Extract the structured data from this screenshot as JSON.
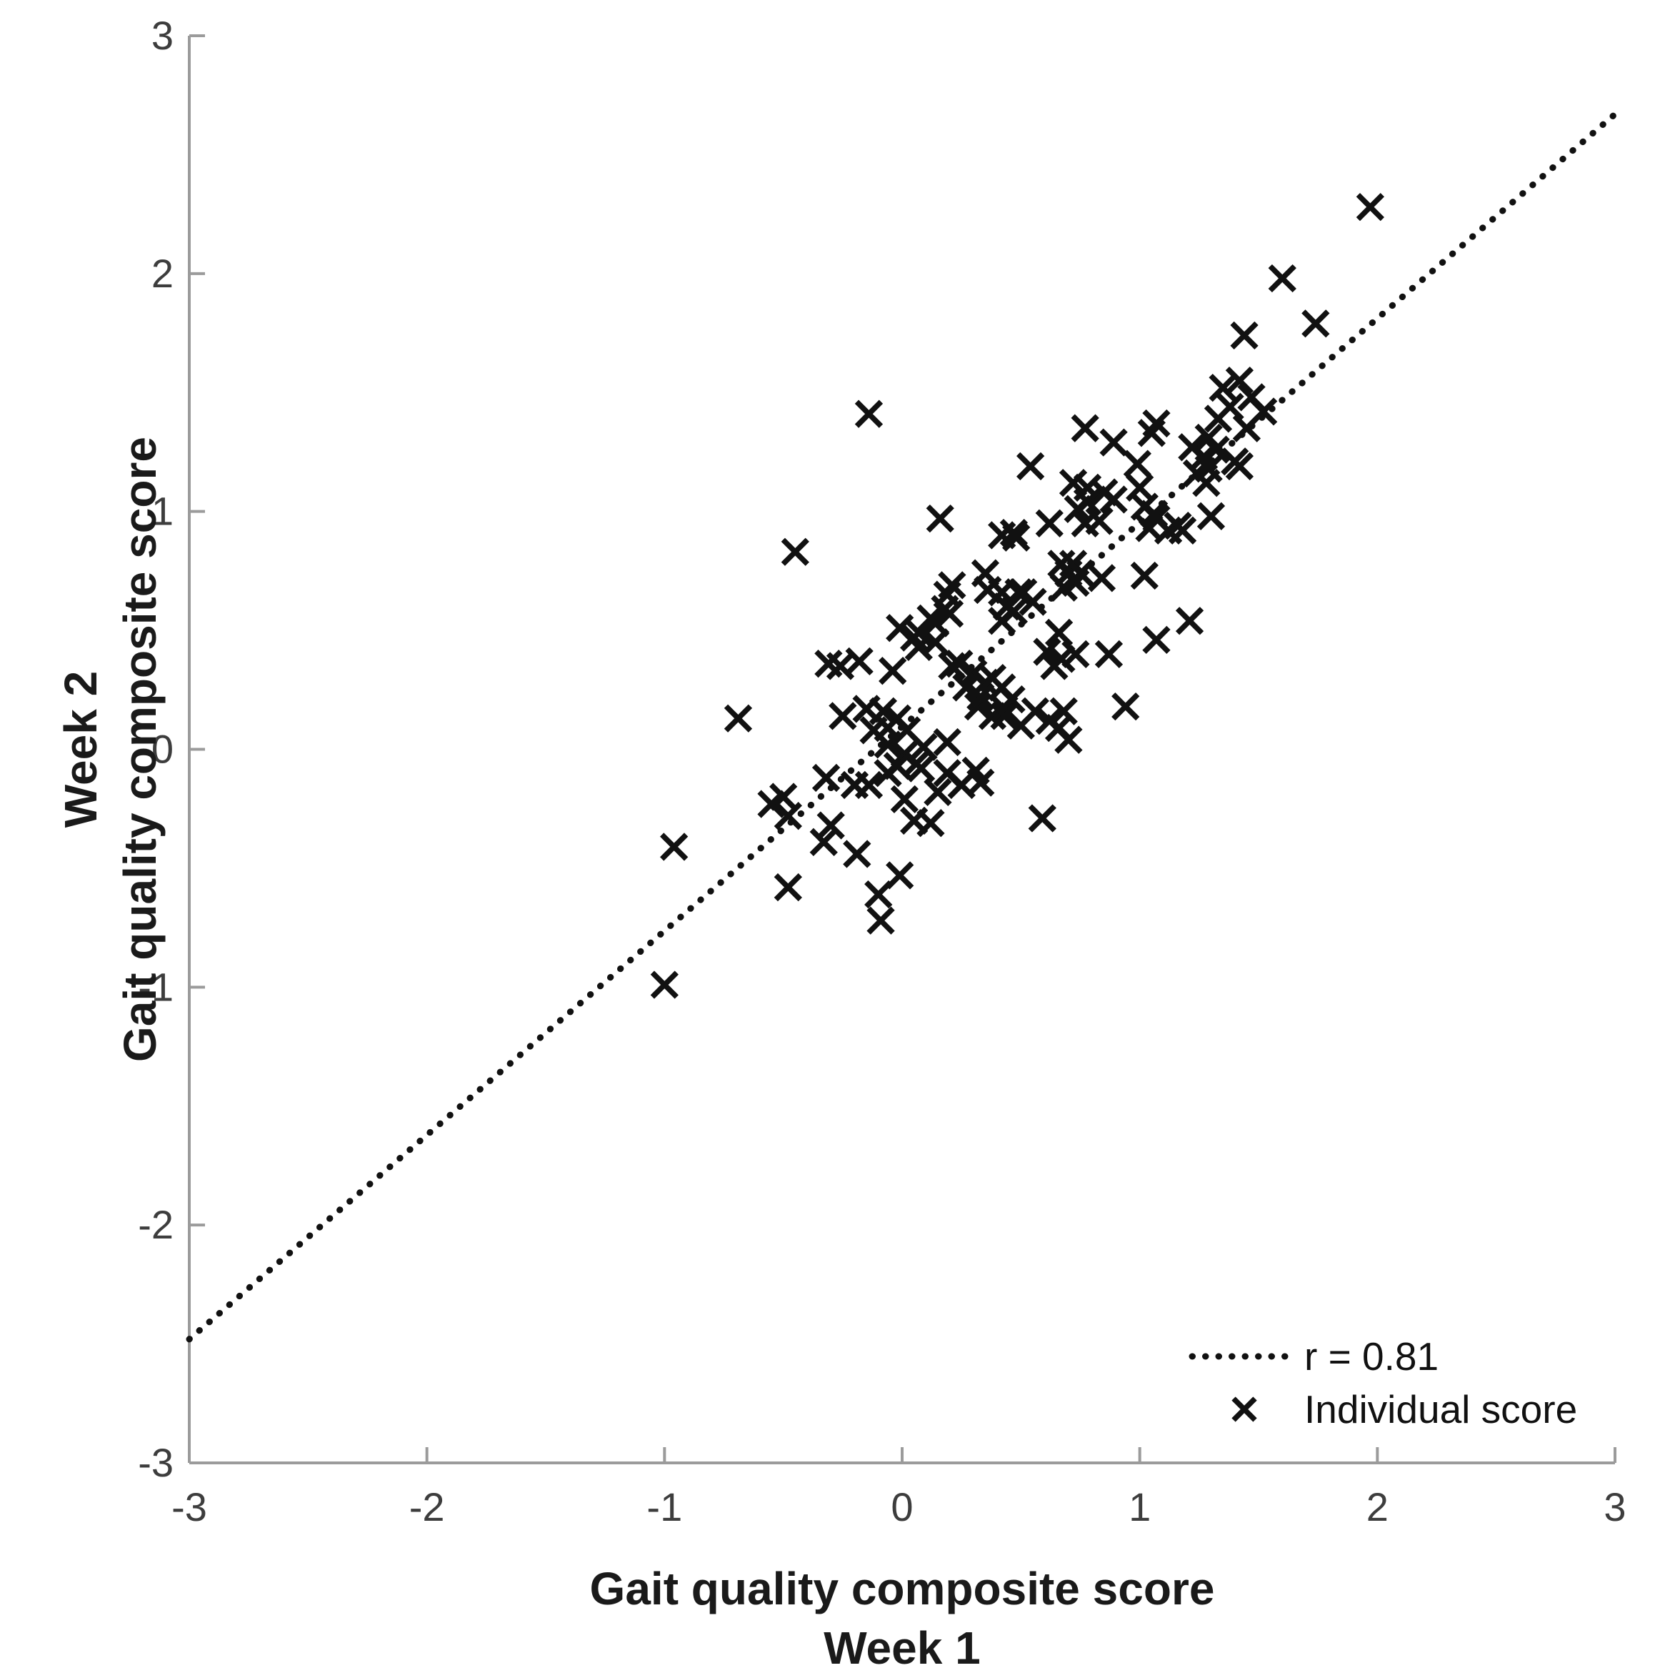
{
  "chart_data": {
    "type": "scatter",
    "title": "",
    "xlabel_lines": [
      "Gait quality composite score",
      "Week 1"
    ],
    "ylabel_lines": [
      "Week 2",
      "Gait quality composite score"
    ],
    "xlim": [
      -3,
      3
    ],
    "ylim": [
      -3,
      3
    ],
    "x_ticks": [
      "-3",
      "-2",
      "-1",
      "0",
      "1",
      "2",
      "3"
    ],
    "y_ticks": [
      "-3",
      "-2",
      "-1",
      "0",
      "1",
      "2",
      "3"
    ],
    "grid": false,
    "legend": {
      "position": "lower-right",
      "entries": [
        {
          "type": "dotted-line",
          "label": "r = 0.81"
        },
        {
          "type": "x-marker",
          "label": "Individual score"
        }
      ]
    },
    "fit_line": {
      "x": [
        -3,
        3
      ],
      "y": [
        -2.48,
        2.67
      ]
    },
    "series": [
      {
        "name": "Individual score",
        "marker": "x",
        "points": [
          [
            1.97,
            2.28
          ],
          [
            1.6,
            1.98
          ],
          [
            1.74,
            1.79
          ],
          [
            1.44,
            1.74
          ],
          [
            -0.14,
            1.41
          ],
          [
            1.35,
            1.52
          ],
          [
            1.42,
            1.55
          ],
          [
            1.47,
            1.48
          ],
          [
            1.52,
            1.42
          ],
          [
            1.38,
            1.44
          ],
          [
            1.45,
            1.35
          ],
          [
            1.33,
            1.39
          ],
          [
            1.29,
            1.31
          ],
          [
            1.07,
            1.37
          ],
          [
            1.05,
            1.33
          ],
          [
            0.89,
            1.29
          ],
          [
            0.77,
            1.35
          ],
          [
            1.22,
            1.27
          ],
          [
            1.27,
            1.23
          ],
          [
            1.32,
            1.26
          ],
          [
            1.29,
            1.18
          ],
          [
            1.24,
            1.16
          ],
          [
            1.42,
            1.19
          ],
          [
            1.28,
            1.12
          ],
          [
            1.4,
            1.21
          ],
          [
            0.54,
            1.19
          ],
          [
            0.99,
            1.2
          ],
          [
            1.0,
            1.1
          ],
          [
            0.72,
            1.12
          ],
          [
            0.78,
            1.1
          ],
          [
            0.85,
            1.08
          ],
          [
            0.78,
            1.04
          ],
          [
            0.89,
            1.05
          ],
          [
            1.02,
            1.02
          ],
          [
            1.07,
            0.97
          ],
          [
            1.12,
            0.92
          ],
          [
            1.04,
            0.93
          ],
          [
            1.16,
            0.94
          ],
          [
            0.47,
            0.91
          ],
          [
            0.62,
            0.95
          ],
          [
            0.74,
            1.01
          ],
          [
            0.77,
            0.95
          ],
          [
            0.83,
            0.96
          ],
          [
            1.06,
            0.99
          ],
          [
            1.18,
            0.92
          ],
          [
            1.3,
            0.98
          ],
          [
            0.67,
            0.78
          ],
          [
            0.7,
            0.74
          ],
          [
            0.73,
            0.7
          ],
          [
            0.68,
            0.68
          ],
          [
            0.72,
            0.78
          ],
          [
            0.75,
            0.74
          ],
          [
            0.84,
            0.72
          ],
          [
            1.02,
            0.73
          ],
          [
            0.51,
            0.66
          ],
          [
            1.21,
            0.54
          ],
          [
            1.07,
            0.46
          ],
          [
            0.16,
            0.97
          ],
          [
            0.42,
            0.9
          ],
          [
            0.48,
            0.89
          ],
          [
            -0.45,
            0.83
          ],
          [
            0.35,
            0.74
          ],
          [
            0.36,
            0.67
          ],
          [
            0.21,
            0.69
          ],
          [
            0.19,
            0.65
          ],
          [
            0.18,
            0.59
          ],
          [
            0.12,
            0.55
          ],
          [
            -0.01,
            0.51
          ],
          [
            0.05,
            0.47
          ],
          [
            0.07,
            0.49
          ],
          [
            0.14,
            0.53
          ],
          [
            0.2,
            0.57
          ],
          [
            0.14,
            0.45
          ],
          [
            0.07,
            0.43
          ],
          [
            0.42,
            0.66
          ],
          [
            0.44,
            0.6
          ],
          [
            0.42,
            0.54
          ],
          [
            0.49,
            0.66
          ],
          [
            0.55,
            0.62
          ],
          [
            0.47,
            0.58
          ],
          [
            0.66,
            0.49
          ],
          [
            0.61,
            0.41
          ],
          [
            0.67,
            0.38
          ],
          [
            0.73,
            0.4
          ],
          [
            0.64,
            0.35
          ],
          [
            0.87,
            0.4
          ],
          [
            -0.26,
            0.35
          ],
          [
            -0.18,
            0.37
          ],
          [
            -0.31,
            0.36
          ],
          [
            -0.04,
            0.33
          ],
          [
            0.21,
            0.35
          ],
          [
            0.24,
            0.36
          ],
          [
            0.3,
            0.32
          ],
          [
            0.35,
            0.28
          ],
          [
            0.27,
            0.26
          ],
          [
            0.33,
            0.22
          ],
          [
            0.38,
            0.3
          ],
          [
            0.32,
            0.18
          ],
          [
            0.38,
            0.14
          ],
          [
            0.43,
            0.17
          ],
          [
            0.19,
            0.03
          ],
          [
            -0.69,
            0.13
          ],
          [
            -0.25,
            0.14
          ],
          [
            0.94,
            0.18
          ],
          [
            0.68,
            0.16
          ],
          [
            0.56,
            0.16
          ],
          [
            0.62,
            0.12
          ],
          [
            0.66,
            0.09
          ],
          [
            0.7,
            0.04
          ],
          [
            0.42,
            0.26
          ],
          [
            0.46,
            0.21
          ],
          [
            0.43,
            0.14
          ],
          [
            0.5,
            0.1
          ],
          [
            -0.15,
            0.17
          ],
          [
            -0.08,
            0.16
          ],
          [
            -0.02,
            0.13
          ],
          [
            -0.12,
            0.08
          ],
          [
            -0.06,
            0.09
          ],
          [
            0.02,
            0.08
          ],
          [
            -0.06,
            0.02
          ],
          [
            0.01,
            -0.02
          ],
          [
            0.06,
            -0.06
          ],
          [
            -0.02,
            -0.07
          ],
          [
            0.08,
            -0.08
          ],
          [
            0.19,
            -0.1
          ],
          [
            0.31,
            -0.09
          ],
          [
            0.09,
            0.01
          ],
          [
            -0.14,
            -0.15
          ],
          [
            -0.06,
            -0.1
          ],
          [
            -0.32,
            -0.12
          ],
          [
            -0.5,
            -0.2
          ],
          [
            -0.2,
            -0.15
          ],
          [
            0.01,
            -0.21
          ],
          [
            0.05,
            -0.3
          ],
          [
            0.12,
            -0.31
          ],
          [
            0.15,
            -0.18
          ],
          [
            0.25,
            -0.15
          ],
          [
            0.33,
            -0.14
          ],
          [
            0.59,
            -0.29
          ],
          [
            -0.55,
            -0.23
          ],
          [
            -0.48,
            -0.28
          ],
          [
            -0.3,
            -0.32
          ],
          [
            -0.33,
            -0.39
          ],
          [
            -0.19,
            -0.44
          ],
          [
            -0.96,
            -0.41
          ],
          [
            -0.48,
            -0.58
          ],
          [
            -0.01,
            -0.53
          ],
          [
            -0.1,
            -0.61
          ],
          [
            -0.09,
            -0.72
          ],
          [
            -1.0,
            -0.99
          ]
        ]
      }
    ],
    "colors": {
      "marker": "#111111",
      "fit_line": "#111111",
      "spine": "#9b9b9b",
      "tick_label": "#3d3d3d",
      "axis_title": "#1a1a1a"
    }
  }
}
